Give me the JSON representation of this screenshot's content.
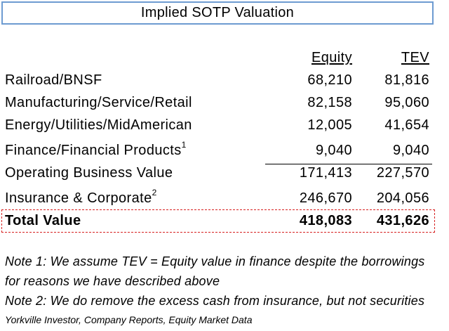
{
  "title": "Implied SOTP Valuation",
  "columns": {
    "equity": "Equity",
    "tev": "TEV"
  },
  "rows": [
    {
      "label": "Railroad/BNSF",
      "sup": "",
      "equity": "68,210",
      "tev": "81,816"
    },
    {
      "label": "Manufacturing/Service/Retail",
      "sup": "",
      "equity": "82,158",
      "tev": "95,060"
    },
    {
      "label": "Energy/Utilities/MidAmerican",
      "sup": "",
      "equity": "12,005",
      "tev": "41,654"
    },
    {
      "label": "Finance/Financial Products",
      "sup": "1",
      "equity": "9,040",
      "tev": "9,040"
    },
    {
      "label": "Operating Business Value",
      "sup": "",
      "equity": "171,413",
      "tev": "227,570"
    },
    {
      "label": "Insurance & Corporate",
      "sup": "2",
      "equity": "246,670",
      "tev": "204,056"
    }
  ],
  "total": {
    "label": "Total Value",
    "equity": "418,083",
    "tev": "431,626"
  },
  "notes": [
    "Note 1: We assume TEV = Equity value in finance despite the borrowings",
    "for reasons we have described above",
    "Note 2: We do remove the excess cash from insurance, but not securities"
  ],
  "source": "Yorkville Investor, Company Reports, Equity Market Data",
  "colors": {
    "title_border": "#6d9bd1",
    "total_border": "#d62020"
  }
}
